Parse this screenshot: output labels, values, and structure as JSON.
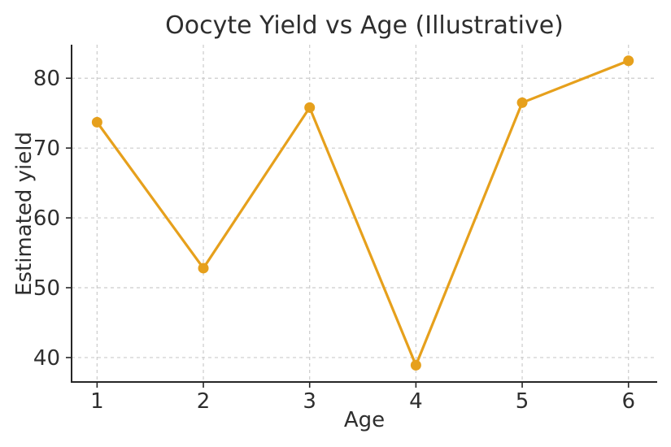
{
  "figure": {
    "background": "#ffffff"
  },
  "chart_data": {
    "type": "line",
    "title": "Oocyte Yield vs Age (Illustrative)",
    "xlabel": "Age",
    "ylabel": "Estimated yield",
    "x": [
      1,
      2,
      3,
      4,
      5,
      6
    ],
    "y": [
      73.7,
      52.8,
      75.8,
      38.9,
      76.5,
      82.5
    ],
    "series_name": "Estimated yield",
    "xticks": [
      1,
      2,
      3,
      4,
      5,
      6
    ],
    "xtick_labels": [
      "1",
      "2",
      "3",
      "4",
      "5",
      "6"
    ],
    "yticks": [
      40,
      50,
      60,
      70,
      80
    ],
    "ytick_labels": [
      "40",
      "50",
      "60",
      "70",
      "80"
    ],
    "xlim": [
      0.76,
      6.27
    ],
    "ylim": [
      36.5,
      84.8
    ],
    "grid": true,
    "grid_style": "dashed",
    "legend": false,
    "marker": "circle",
    "colors": {
      "line": "#E6A01C",
      "marker": "#E6A01C",
      "grid": "#cccccc",
      "spine": "#262626",
      "tick": "#262626",
      "text": "#2e2e2e",
      "background": "#ffffff"
    }
  }
}
